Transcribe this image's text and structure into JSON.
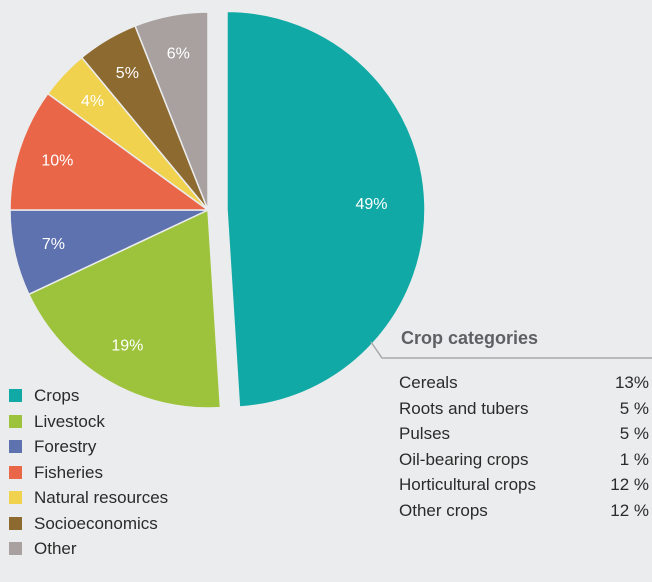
{
  "chart_data": {
    "type": "pie",
    "slices": [
      {
        "name": "Crops",
        "value": 49,
        "label": "49%",
        "color": "#10a9a5",
        "exploded": true
      },
      {
        "name": "Livestock",
        "value": 19,
        "label": "19%",
        "color": "#9cc33b"
      },
      {
        "name": "Forestry",
        "value": 7,
        "label": "7%",
        "color": "#5f72b0"
      },
      {
        "name": "Fisheries",
        "value": 10,
        "label": "10%",
        "color": "#ea6648"
      },
      {
        "name": "Natural resources",
        "value": 4,
        "label": "4%",
        "color": "#f0d24e"
      },
      {
        "name": "Socioeconomics",
        "value": 5,
        "label": "5%",
        "color": "#8d6a30"
      },
      {
        "name": "Other",
        "value": 6,
        "label": "6%",
        "color": "#a9a1a0"
      }
    ],
    "legend_position": "bottom-left"
  },
  "crop_categories": {
    "title": "Crop categories",
    "rows": [
      {
        "name": "Cereals",
        "pct": "13%"
      },
      {
        "name": "Roots and tubers",
        "pct": "5 %"
      },
      {
        "name": "Pulses",
        "pct": "5 %"
      },
      {
        "name": "Oil-bearing crops",
        "pct": "1 %"
      },
      {
        "name": "Horticultural crops",
        "pct": "12 %"
      },
      {
        "name": "Other crops",
        "pct": "12 %"
      }
    ]
  }
}
